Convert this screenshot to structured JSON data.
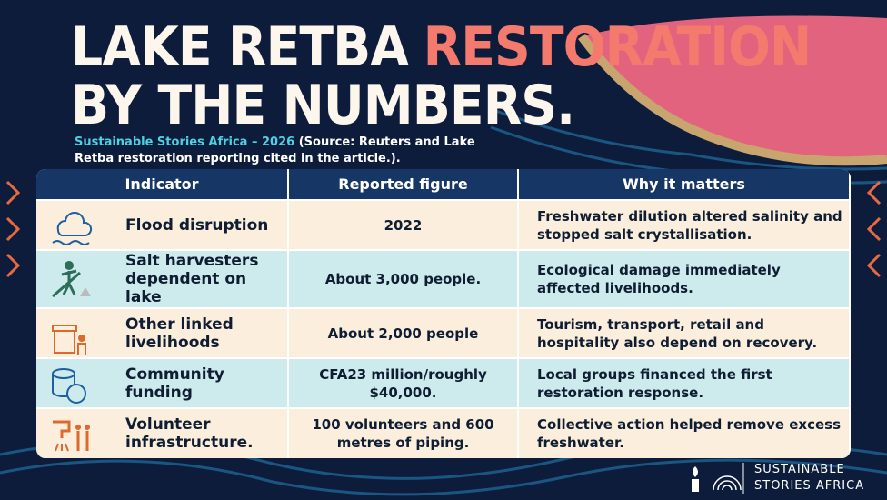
{
  "header": {
    "title_part1": "LAKE RETBA",
    "title_highlight": "RESTORATION",
    "title_line2": "BY THE NUMBERS.",
    "subtitle_source": "Sustainable Stories Africa – 2026",
    "subtitle_rest": "(Source: Reuters and Lake Retba restoration reporting cited in the article.)."
  },
  "table": {
    "columns": [
      "Indicator",
      "Reported figure",
      "Why it matters"
    ],
    "rows": [
      [
        "Flood disruption",
        "2022",
        "Freshwater dilution altered salinity and stopped salt crystallisation."
      ],
      [
        "Salt harvesters dependent on lake",
        "About 3,000 people.",
        "Ecological damage immediately affected livelihoods."
      ],
      [
        "Other linked livelihoods",
        "About 2,000 people",
        "Tourism, transport, retail and hospitality also depend on recovery."
      ],
      [
        "Community funding",
        "CFA23 million/roughly $40,000.",
        "Local groups financed the first restoration response."
      ],
      [
        "Volunteer infrastructure.",
        "100 volunteers and 600 metres of piping.",
        "Collective action helped remove excess freshwater."
      ]
    ]
  },
  "footer": {
    "brand_line1": "SUSTAINABLE",
    "brand_line2": "STORIES AFRICA"
  }
}
